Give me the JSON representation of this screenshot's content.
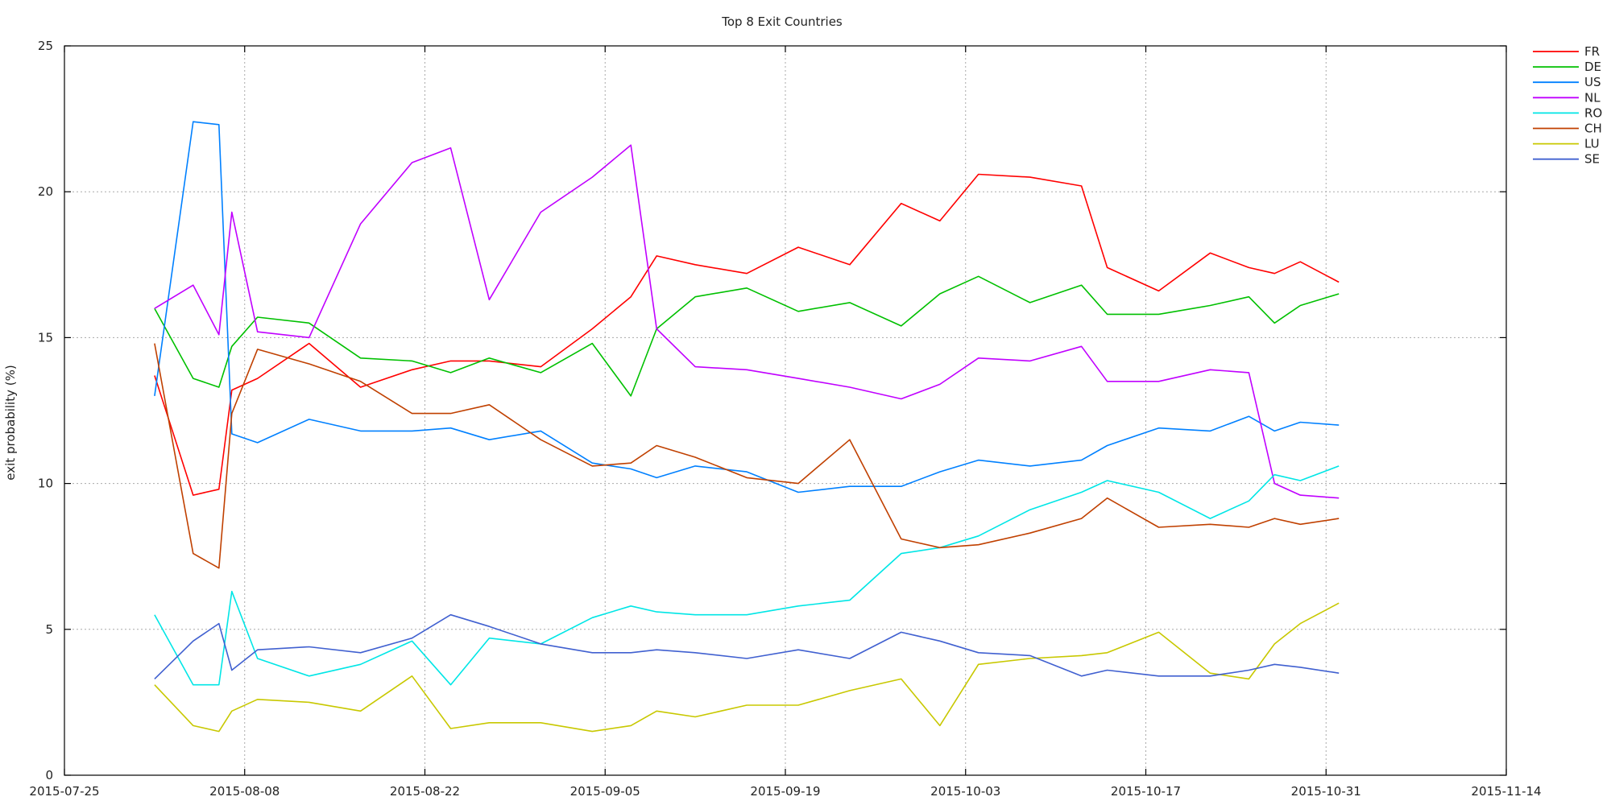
{
  "chart_data": {
    "type": "line",
    "title": "Top 8 Exit Countries",
    "ylabel": "exit probability (%)",
    "xlabel": "",
    "xlim": [
      "2015-07-25",
      "2015-11-14"
    ],
    "ylim": [
      0,
      25
    ],
    "grid": true,
    "legend_position": "top-right-outside",
    "x_ticks": [
      "2015-07-25",
      "2015-08-08",
      "2015-08-22",
      "2015-09-05",
      "2015-09-19",
      "2015-10-03",
      "2015-10-17",
      "2015-10-31",
      "2015-11-14"
    ],
    "y_ticks": [
      0,
      5,
      10,
      15,
      20,
      25
    ],
    "x": [
      "2015-08-01",
      "2015-08-04",
      "2015-08-06",
      "2015-08-07",
      "2015-08-09",
      "2015-08-13",
      "2015-08-17",
      "2015-08-21",
      "2015-08-24",
      "2015-08-27",
      "2015-08-31",
      "2015-09-04",
      "2015-09-07",
      "2015-09-09",
      "2015-09-12",
      "2015-09-16",
      "2015-09-20",
      "2015-09-24",
      "2015-09-28",
      "2015-10-01",
      "2015-10-04",
      "2015-10-08",
      "2015-10-12",
      "2015-10-14",
      "2015-10-18",
      "2015-10-22",
      "2015-10-25",
      "2015-10-27",
      "2015-10-29",
      "2015-11-01"
    ],
    "series": [
      {
        "name": "FR",
        "color": "#ff0000",
        "values": [
          13.7,
          9.6,
          9.8,
          13.2,
          13.6,
          14.8,
          13.3,
          13.9,
          14.2,
          14.2,
          14.0,
          15.3,
          16.4,
          17.8,
          17.5,
          17.2,
          18.1,
          17.5,
          19.6,
          19.0,
          20.6,
          20.5,
          20.2,
          17.4,
          16.6,
          17.9,
          17.4,
          17.2,
          17.6,
          16.9
        ]
      },
      {
        "name": "DE",
        "color": "#00c000",
        "values": [
          16.0,
          13.6,
          13.3,
          14.7,
          15.7,
          15.5,
          14.3,
          14.2,
          13.8,
          14.3,
          13.8,
          14.8,
          13.0,
          15.3,
          16.4,
          16.7,
          15.9,
          16.2,
          15.4,
          16.5,
          17.1,
          16.2,
          16.8,
          15.8,
          15.8,
          16.1,
          16.4,
          15.5,
          16.1,
          16.5
        ]
      },
      {
        "name": "US",
        "color": "#0080ff",
        "values": [
          13.0,
          22.4,
          22.3,
          11.7,
          11.4,
          12.2,
          11.8,
          11.8,
          11.9,
          11.5,
          11.8,
          10.7,
          10.5,
          10.2,
          10.6,
          10.4,
          9.7,
          9.9,
          9.9,
          10.4,
          10.8,
          10.6,
          10.8,
          11.3,
          11.9,
          11.8,
          12.3,
          11.8,
          12.1,
          12.0
        ]
      },
      {
        "name": "NL",
        "color": "#c000ff",
        "values": [
          16.0,
          16.8,
          15.1,
          19.3,
          15.2,
          15.0,
          18.9,
          21.0,
          21.5,
          16.3,
          19.3,
          20.5,
          21.6,
          15.3,
          14.0,
          13.9,
          13.6,
          13.3,
          12.9,
          13.4,
          14.3,
          14.2,
          14.7,
          13.5,
          13.5,
          13.9,
          13.8,
          10.0,
          9.6,
          9.5
        ]
      },
      {
        "name": "RO",
        "color": "#00e6e6",
        "values": [
          5.5,
          3.1,
          3.1,
          6.3,
          4.0,
          3.4,
          3.8,
          4.6,
          3.1,
          4.7,
          4.5,
          5.4,
          5.8,
          5.6,
          5.5,
          5.5,
          5.8,
          6.0,
          7.6,
          7.8,
          8.2,
          9.1,
          9.7,
          10.1,
          9.7,
          8.8,
          9.4,
          10.3,
          10.1,
          10.6
        ]
      },
      {
        "name": "CH",
        "color": "#c04000",
        "values": [
          14.8,
          7.6,
          7.1,
          12.4,
          14.6,
          14.1,
          13.5,
          12.4,
          12.4,
          12.7,
          11.5,
          10.6,
          10.7,
          11.3,
          10.9,
          10.2,
          10.0,
          11.5,
          8.1,
          7.8,
          7.9,
          8.3,
          8.8,
          9.5,
          8.5,
          8.6,
          8.5,
          8.8,
          8.6,
          8.8
        ]
      },
      {
        "name": "LU",
        "color": "#c8c800",
        "values": [
          3.1,
          1.7,
          1.5,
          2.2,
          2.6,
          2.5,
          2.2,
          3.4,
          1.6,
          1.8,
          1.8,
          1.5,
          1.7,
          2.2,
          2.0,
          2.4,
          2.4,
          2.9,
          3.3,
          1.7,
          3.8,
          4.0,
          4.1,
          4.2,
          4.9,
          3.5,
          3.3,
          4.5,
          5.2,
          5.9
        ]
      },
      {
        "name": "SE",
        "color": "#4060d0",
        "values": [
          3.3,
          4.6,
          5.2,
          3.6,
          4.3,
          4.4,
          4.2,
          4.7,
          5.5,
          5.1,
          4.5,
          4.2,
          4.2,
          4.3,
          4.2,
          4.0,
          4.3,
          4.0,
          4.9,
          4.6,
          4.2,
          4.1,
          3.4,
          3.6,
          3.4,
          3.4,
          3.6,
          3.8,
          3.7,
          3.5
        ]
      }
    ]
  }
}
